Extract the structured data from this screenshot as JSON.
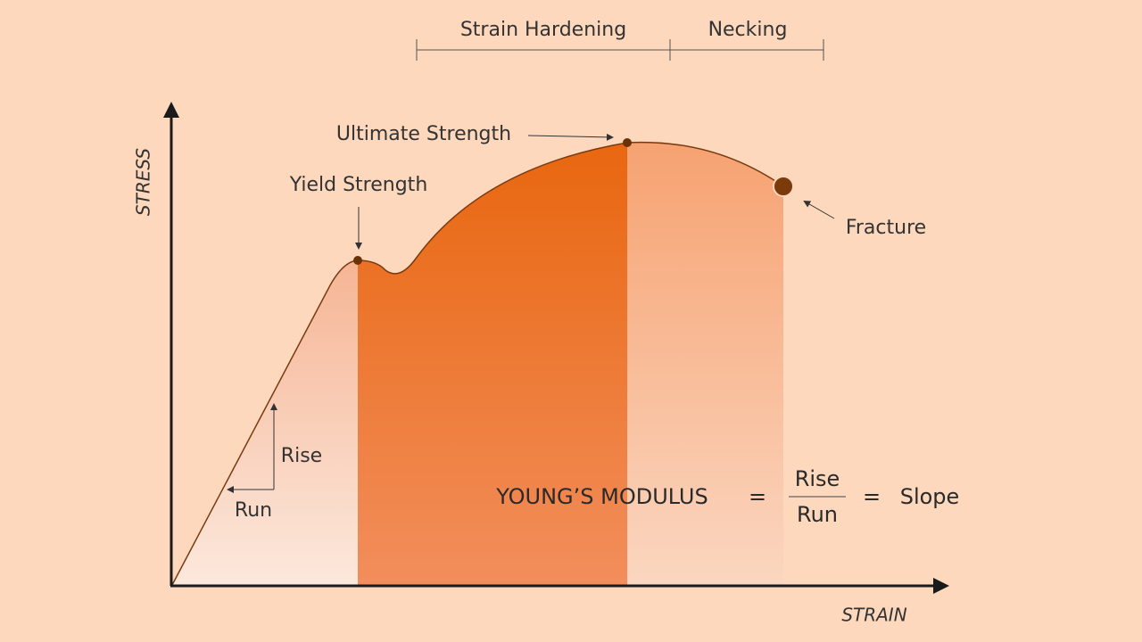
{
  "axes": {
    "y_label": "STRESS",
    "x_label": "STRAIN"
  },
  "regions": [
    {
      "label": "Strain Hardening"
    },
    {
      "label": "Necking"
    }
  ],
  "points": [
    {
      "label": "Yield Strength"
    },
    {
      "label": "Ultimate Strength"
    },
    {
      "label": "Fracture"
    }
  ],
  "slope": {
    "rise": "Rise",
    "run": "Run"
  },
  "formula": {
    "name": "YOUNG’S MODULUS",
    "equals": "=",
    "numerator": "Rise",
    "denominator": "Run",
    "equals_2": "=",
    "result": "Slope"
  }
}
